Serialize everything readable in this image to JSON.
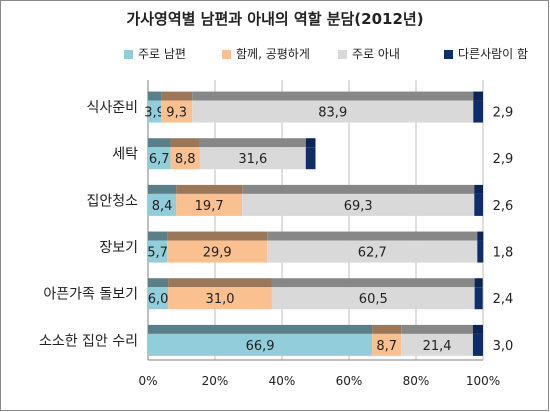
{
  "chart_data": {
    "type": "bar",
    "orientation": "horizontal",
    "stacked": "percent",
    "title": "가사영역별 남편과 아내의 역할 분담(2012년)",
    "categories": [
      "식사준비",
      "세탁",
      "집안청소",
      "장보기",
      "아픈가족 돌보기",
      "소소한 집안 수리"
    ],
    "series": [
      {
        "name": "주로 남편",
        "color": "#92cddc",
        "values": [
          3.9,
          6.7,
          8.4,
          5.7,
          6.0,
          66.9
        ]
      },
      {
        "name": "함께, 공평하게",
        "color": "#fac090",
        "values": [
          9.3,
          8.8,
          19.7,
          29.9,
          31.0,
          8.7
        ]
      },
      {
        "name": "주로 아내",
        "color": "#d9d9d9",
        "values": [
          83.9,
          31.6,
          69.3,
          62.7,
          60.5,
          21.4
        ]
      },
      {
        "name": "다른사람이 함",
        "color": "#0f2d6b",
        "values": [
          2.9,
          2.9,
          2.6,
          1.8,
          2.4,
          3.0
        ]
      }
    ],
    "xaxis_ticks": [
      "0%",
      "20%",
      "40%",
      "60%",
      "80%",
      "100%"
    ],
    "xlim": [
      0,
      100
    ],
    "grid": true,
    "legend_position": "top"
  }
}
